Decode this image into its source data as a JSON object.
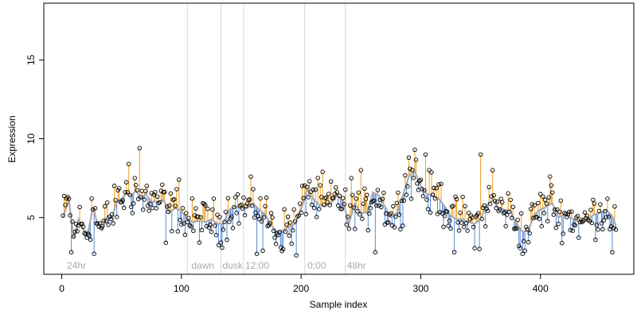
{
  "chart_data": {
    "type": "scatter",
    "xlabel": "Sample index",
    "ylabel": "Expression",
    "xlim": [
      -15,
      478
    ],
    "ylim": [
      1.4,
      18.6
    ],
    "xticks": [
      0,
      100,
      200,
      300,
      400
    ],
    "yticks": [
      5,
      10,
      15
    ],
    "colors": {
      "above": "#f0a020",
      "below": "#5b8bd6",
      "smooth": "#a8a8a8",
      "divider": "#d8d8d8",
      "label": "#aaaaaa"
    },
    "dividers": [
      105,
      133,
      152,
      203,
      237
    ],
    "period_labels": [
      {
        "x": 3,
        "text": "24hr"
      },
      {
        "x": 107,
        "text": "dawn"
      },
      {
        "x": 133,
        "text": "dusk"
      },
      {
        "x": 152,
        "text": "12:00"
      },
      {
        "x": 204,
        "text": "0:00"
      },
      {
        "x": 237,
        "text": "48hr"
      }
    ],
    "anchors": [
      [
        1,
        5.0
      ],
      [
        6,
        6.1
      ],
      [
        10,
        3.7
      ],
      [
        14,
        4.9
      ],
      [
        18,
        4.2
      ],
      [
        22,
        4.1
      ],
      [
        26,
        5.6
      ],
      [
        30,
        4.6
      ],
      [
        34,
        4.2
      ],
      [
        38,
        5.1
      ],
      [
        42,
        5.0
      ],
      [
        46,
        6.0
      ],
      [
        50,
        6.2
      ],
      [
        54,
        6.5
      ],
      [
        58,
        6.4
      ],
      [
        62,
        6.7
      ],
      [
        66,
        6.2
      ],
      [
        70,
        6.5
      ],
      [
        75,
        6.0
      ],
      [
        80,
        6.0
      ],
      [
        85,
        6.1
      ],
      [
        90,
        5.3
      ],
      [
        95,
        5.6
      ],
      [
        100,
        5.4
      ],
      [
        105,
        4.9
      ],
      [
        110,
        4.7
      ],
      [
        115,
        4.8
      ],
      [
        120,
        4.7
      ],
      [
        125,
        4.9
      ],
      [
        130,
        4.6
      ],
      [
        135,
        4.6
      ],
      [
        140,
        5.5
      ],
      [
        145,
        5.7
      ],
      [
        150,
        5.6
      ],
      [
        155,
        5.6
      ],
      [
        160,
        5.9
      ],
      [
        165,
        5.5
      ],
      [
        170,
        5.2
      ],
      [
        175,
        4.5
      ],
      [
        180,
        4.1
      ],
      [
        185,
        4.2
      ],
      [
        190,
        4.4
      ],
      [
        195,
        4.6
      ],
      [
        200,
        5.5
      ],
      [
        205,
        6.8
      ],
      [
        210,
        6.2
      ],
      [
        215,
        5.8
      ],
      [
        220,
        5.7
      ],
      [
        225,
        5.9
      ],
      [
        230,
        6.4
      ],
      [
        235,
        6.0
      ],
      [
        240,
        4.6
      ],
      [
        245,
        5.9
      ],
      [
        250,
        5.3
      ],
      [
        255,
        5.3
      ],
      [
        260,
        6.6
      ],
      [
        265,
        6.4
      ],
      [
        270,
        5.7
      ],
      [
        275,
        5.0
      ],
      [
        280,
        5.3
      ],
      [
        285,
        6.4
      ],
      [
        290,
        7.6
      ],
      [
        295,
        7.9
      ],
      [
        300,
        7.0
      ],
      [
        305,
        6.5
      ],
      [
        310,
        6.4
      ],
      [
        315,
        6.2
      ],
      [
        320,
        5.7
      ],
      [
        325,
        5.1
      ],
      [
        330,
        4.9
      ],
      [
        335,
        4.9
      ],
      [
        340,
        4.7
      ],
      [
        345,
        4.6
      ],
      [
        350,
        4.9
      ],
      [
        355,
        5.8
      ],
      [
        360,
        6.1
      ],
      [
        365,
        5.6
      ],
      [
        370,
        5.5
      ],
      [
        375,
        5.4
      ],
      [
        380,
        4.6
      ],
      [
        385,
        4.1
      ],
      [
        390,
        4.2
      ],
      [
        395,
        5.2
      ],
      [
        400,
        5.5
      ],
      [
        405,
        5.7
      ],
      [
        410,
        5.9
      ],
      [
        415,
        5.0
      ],
      [
        420,
        5.2
      ],
      [
        425,
        5.0
      ],
      [
        430,
        4.8
      ],
      [
        435,
        4.6
      ],
      [
        440,
        4.9
      ],
      [
        445,
        5.2
      ],
      [
        450,
        5.3
      ],
      [
        455,
        5.5
      ],
      [
        460,
        5.1
      ],
      [
        463,
        4.5
      ]
    ],
    "extremes": [
      [
        5,
        6.3
      ],
      [
        8,
        2.8
      ],
      [
        25,
        6.2
      ],
      [
        27,
        2.7
      ],
      [
        56,
        8.4
      ],
      [
        61,
        7.5
      ],
      [
        65,
        9.4
      ],
      [
        68,
        5.5
      ],
      [
        87,
        3.4
      ],
      [
        98,
        7.4
      ],
      [
        103,
        3.9
      ],
      [
        160,
        6.8
      ],
      [
        163,
        2.7
      ],
      [
        168,
        2.9
      ],
      [
        176,
        5.0
      ],
      [
        185,
        3.0
      ],
      [
        196,
        2.6
      ],
      [
        207,
        7.3
      ],
      [
        218,
        7.9
      ],
      [
        230,
        6.6
      ],
      [
        242,
        7.5
      ],
      [
        250,
        8.0
      ],
      [
        262,
        2.8
      ],
      [
        290,
        8.8
      ],
      [
        295,
        9.3
      ],
      [
        304,
        9.0
      ],
      [
        315,
        7.1
      ],
      [
        328,
        2.8
      ],
      [
        349,
        3.0
      ],
      [
        350,
        9.0
      ],
      [
        360,
        8.0
      ],
      [
        385,
        2.7
      ],
      [
        387,
        2.9
      ],
      [
        408,
        7.6
      ],
      [
        460,
        2.8
      ],
      [
        462,
        5.7
      ]
    ]
  }
}
